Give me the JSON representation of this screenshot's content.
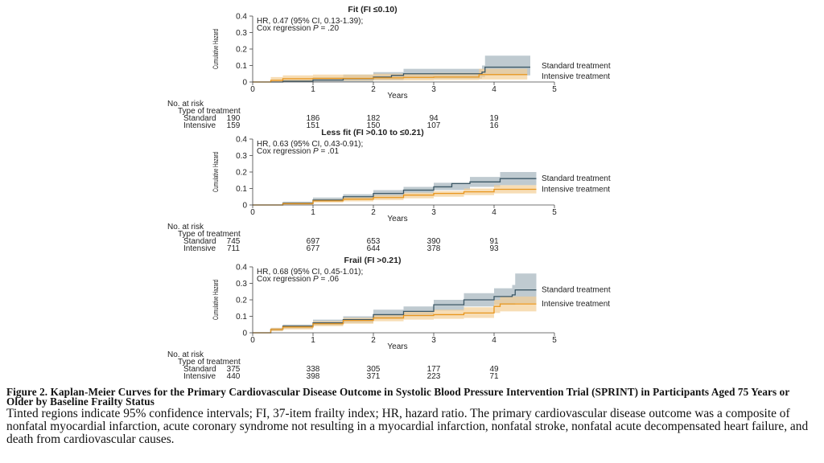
{
  "panels": [
    {
      "title": "Fit (FI ≤0.10)",
      "hr_line": "HR, 0.47 (95% CI, 0.13-1.39);",
      "cox_prefix": "Cox regression ",
      "cox_p": "P",
      "cox_suffix": " = .20",
      "risk_standard": [
        "190",
        "186",
        "182",
        "94",
        "19"
      ],
      "risk_intensive": [
        "159",
        "151",
        "150",
        "107",
        "16"
      ]
    },
    {
      "title": "Less fit (FI >0.10 to ≤0.21)",
      "hr_line": "HR, 0.63 (95% CI, 0.43-0.91);",
      "cox_prefix": "Cox regression ",
      "cox_p": "P",
      "cox_suffix": " = .01",
      "risk_standard": [
        "745",
        "697",
        "653",
        "390",
        "91"
      ],
      "risk_intensive": [
        "711",
        "677",
        "644",
        "378",
        "93"
      ]
    },
    {
      "title": "Frail (FI >0.21)",
      "hr_line": "HR, 0.68 (95% CI, 0.45-1.01);",
      "cox_prefix": "Cox regression ",
      "cox_p": "P",
      "cox_suffix": " = .06",
      "risk_standard": [
        "375",
        "338",
        "305",
        "177",
        "49"
      ],
      "risk_intensive": [
        "440",
        "398",
        "371",
        "223",
        "71"
      ]
    }
  ],
  "labels": {
    "ylabel": "Cumulative Hazard",
    "xlabel": "Years",
    "no_at_risk": "No. at risk",
    "type_of_treatment": "Type of treatment",
    "standard_row": "Standard",
    "intensive_row": "Intensive",
    "standard_series": "Standard treatment",
    "intensive_series": "Intensive treatment"
  },
  "colors": {
    "standard_line": "#3d5866",
    "standard_band": "#a9b8c0",
    "intensive_line": "#e8961e",
    "intensive_band": "#f4cf95"
  },
  "chart_data": [
    {
      "type": "line",
      "title": "Fit (FI ≤0.10)",
      "xlabel": "Years",
      "ylabel": "Cumulative Hazard",
      "xlim": [
        0,
        5
      ],
      "ylim": [
        0,
        0.4
      ],
      "x_ticks": [
        0,
        1,
        2,
        3,
        4,
        5
      ],
      "y_ticks": [
        0,
        0.1,
        0.2,
        0.3,
        0.4
      ],
      "y_tick_labels": [
        "0",
        "0.1",
        "0.2",
        "0.3",
        "0.4"
      ],
      "series": [
        {
          "name": "Standard treatment",
          "points": [
            [
              0,
              0
            ],
            [
              0.5,
              0.005
            ],
            [
              1,
              0.012
            ],
            [
              1.5,
              0.02
            ],
            [
              2,
              0.03
            ],
            [
              2.3,
              0.04
            ],
            [
              2.5,
              0.05
            ],
            [
              3.8,
              0.06
            ],
            [
              3.85,
              0.09
            ],
            [
              4.6,
              0.09
            ]
          ],
          "ci_upper": [
            [
              0,
              0
            ],
            [
              0.5,
              0.015
            ],
            [
              1,
              0.03
            ],
            [
              1.5,
              0.045
            ],
            [
              2,
              0.06
            ],
            [
              2.5,
              0.08
            ],
            [
              3.8,
              0.1
            ],
            [
              3.85,
              0.16
            ],
            [
              4.6,
              0.16
            ]
          ],
          "ci_lower": [
            [
              0,
              0
            ],
            [
              1,
              0.002
            ],
            [
              2,
              0.01
            ],
            [
              2.5,
              0.02
            ],
            [
              3.8,
              0.03
            ],
            [
              3.85,
              0.04
            ],
            [
              4.6,
              0.04
            ]
          ]
        },
        {
          "name": "Intensive treatment",
          "points": [
            [
              0,
              0
            ],
            [
              0.3,
              0.01
            ],
            [
              0.5,
              0.02
            ],
            [
              1,
              0.022
            ],
            [
              2,
              0.025
            ],
            [
              2.5,
              0.028
            ],
            [
              3,
              0.03
            ],
            [
              3.7,
              0.03
            ],
            [
              3.75,
              0.045
            ],
            [
              4.55,
              0.045
            ]
          ],
          "ci_upper": [
            [
              0,
              0
            ],
            [
              0.3,
              0.03
            ],
            [
              0.5,
              0.04
            ],
            [
              1,
              0.045
            ],
            [
              2,
              0.05
            ],
            [
              3,
              0.055
            ],
            [
              3.75,
              0.08
            ],
            [
              4.55,
              0.08
            ]
          ],
          "ci_lower": [
            [
              0,
              0
            ],
            [
              0.5,
              0.005
            ],
            [
              1,
              0.008
            ],
            [
              2,
              0.01
            ],
            [
              3,
              0.012
            ],
            [
              3.75,
              0.015
            ],
            [
              4.55,
              0.015
            ]
          ]
        }
      ]
    },
    {
      "type": "line",
      "title": "Less fit (FI >0.10 to ≤0.21)",
      "xlabel": "Years",
      "ylabel": "Cumulative Hazard",
      "xlim": [
        0,
        5
      ],
      "ylim": [
        0,
        0.4
      ],
      "x_ticks": [
        0,
        1,
        2,
        3,
        4,
        5
      ],
      "y_ticks": [
        0,
        0.1,
        0.2,
        0.3,
        0.4
      ],
      "y_tick_labels": [
        "0",
        "0.1",
        "0.2",
        "0.3",
        "0.4"
      ],
      "series": [
        {
          "name": "Standard treatment",
          "points": [
            [
              0,
              0
            ],
            [
              0.5,
              0.01
            ],
            [
              1,
              0.03
            ],
            [
              1.5,
              0.05
            ],
            [
              2,
              0.07
            ],
            [
              2.5,
              0.09
            ],
            [
              3,
              0.11
            ],
            [
              3.3,
              0.13
            ],
            [
              3.6,
              0.14
            ],
            [
              4.1,
              0.16
            ],
            [
              4.7,
              0.16
            ]
          ],
          "ci_upper": [
            [
              0,
              0
            ],
            [
              0.5,
              0.02
            ],
            [
              1,
              0.045
            ],
            [
              1.5,
              0.065
            ],
            [
              2,
              0.09
            ],
            [
              2.5,
              0.11
            ],
            [
              3,
              0.135
            ],
            [
              3.6,
              0.17
            ],
            [
              4.1,
              0.2
            ],
            [
              4.7,
              0.2
            ]
          ],
          "ci_lower": [
            [
              0,
              0
            ],
            [
              0.5,
              0.003
            ],
            [
              1,
              0.02
            ],
            [
              1.5,
              0.035
            ],
            [
              2,
              0.05
            ],
            [
              2.5,
              0.07
            ],
            [
              3,
              0.09
            ],
            [
              3.6,
              0.11
            ],
            [
              4.1,
              0.12
            ],
            [
              4.7,
              0.12
            ]
          ]
        },
        {
          "name": "Intensive treatment",
          "points": [
            [
              0,
              0
            ],
            [
              0.5,
              0.008
            ],
            [
              1,
              0.025
            ],
            [
              1.5,
              0.035
            ],
            [
              2,
              0.045
            ],
            [
              2.5,
              0.06
            ],
            [
              3,
              0.07
            ],
            [
              3.5,
              0.08
            ],
            [
              4,
              0.095
            ],
            [
              4.7,
              0.095
            ]
          ],
          "ci_upper": [
            [
              0,
              0
            ],
            [
              0.5,
              0.015
            ],
            [
              1,
              0.035
            ],
            [
              1.5,
              0.05
            ],
            [
              2,
              0.06
            ],
            [
              2.5,
              0.075
            ],
            [
              3,
              0.085
            ],
            [
              3.5,
              0.1
            ],
            [
              4,
              0.12
            ],
            [
              4.7,
              0.12
            ]
          ],
          "ci_lower": [
            [
              0,
              0
            ],
            [
              0.5,
              0.002
            ],
            [
              1,
              0.015
            ],
            [
              1.5,
              0.022
            ],
            [
              2,
              0.03
            ],
            [
              2.5,
              0.04
            ],
            [
              3,
              0.05
            ],
            [
              3.5,
              0.06
            ],
            [
              4,
              0.07
            ],
            [
              4.7,
              0.07
            ]
          ]
        }
      ]
    },
    {
      "type": "line",
      "title": "Frail (FI >0.21)",
      "xlabel": "Years",
      "ylabel": "Cumulative Hazard",
      "xlim": [
        0,
        5
      ],
      "ylim": [
        0,
        0.4
      ],
      "x_ticks": [
        0,
        1,
        2,
        3,
        4,
        5
      ],
      "y_ticks": [
        0,
        0.1,
        0.2,
        0.3,
        0.4
      ],
      "y_tick_labels": [
        "0",
        "0.1",
        "0.2",
        "0.3",
        "0.4"
      ],
      "series": [
        {
          "name": "Standard treatment",
          "points": [
            [
              0,
              0
            ],
            [
              0.3,
              0.02
            ],
            [
              0.5,
              0.04
            ],
            [
              1,
              0.06
            ],
            [
              1.5,
              0.08
            ],
            [
              2,
              0.11
            ],
            [
              2.5,
              0.13
            ],
            [
              3,
              0.17
            ],
            [
              3.5,
              0.2
            ],
            [
              4,
              0.22
            ],
            [
              4.3,
              0.23
            ],
            [
              4.35,
              0.26
            ],
            [
              4.7,
              0.26
            ]
          ],
          "ci_upper": [
            [
              0,
              0
            ],
            [
              0.3,
              0.03
            ],
            [
              0.5,
              0.05
            ],
            [
              1,
              0.08
            ],
            [
              1.5,
              0.1
            ],
            [
              2,
              0.14
            ],
            [
              2.5,
              0.16
            ],
            [
              3,
              0.2
            ],
            [
              3.5,
              0.24
            ],
            [
              4,
              0.27
            ],
            [
              4.3,
              0.29
            ],
            [
              4.35,
              0.36
            ],
            [
              4.7,
              0.36
            ]
          ],
          "ci_lower": [
            [
              0,
              0
            ],
            [
              0.3,
              0.01
            ],
            [
              0.5,
              0.025
            ],
            [
              1,
              0.045
            ],
            [
              1.5,
              0.06
            ],
            [
              2,
              0.085
            ],
            [
              2.5,
              0.1
            ],
            [
              3,
              0.135
            ],
            [
              3.5,
              0.16
            ],
            [
              4,
              0.17
            ],
            [
              4.35,
              0.18
            ],
            [
              4.7,
              0.18
            ]
          ]
        },
        {
          "name": "Intensive treatment",
          "points": [
            [
              0,
              0
            ],
            [
              0.3,
              0.02
            ],
            [
              0.5,
              0.035
            ],
            [
              1,
              0.055
            ],
            [
              1.5,
              0.075
            ],
            [
              2,
              0.09
            ],
            [
              2.5,
              0.105
            ],
            [
              3,
              0.11
            ],
            [
              3.5,
              0.12
            ],
            [
              4,
              0.16
            ],
            [
              4.1,
              0.175
            ],
            [
              4.7,
              0.175
            ]
          ],
          "ci_upper": [
            [
              0,
              0
            ],
            [
              0.3,
              0.03
            ],
            [
              0.5,
              0.045
            ],
            [
              1,
              0.07
            ],
            [
              1.5,
              0.09
            ],
            [
              2,
              0.11
            ],
            [
              2.5,
              0.13
            ],
            [
              3,
              0.14
            ],
            [
              3.5,
              0.155
            ],
            [
              4,
              0.2
            ],
            [
              4.1,
              0.22
            ],
            [
              4.7,
              0.22
            ]
          ],
          "ci_lower": [
            [
              0,
              0
            ],
            [
              0.3,
              0.01
            ],
            [
              0.5,
              0.02
            ],
            [
              1,
              0.04
            ],
            [
              1.5,
              0.055
            ],
            [
              2,
              0.07
            ],
            [
              2.5,
              0.08
            ],
            [
              3,
              0.085
            ],
            [
              3.5,
              0.09
            ],
            [
              4,
              0.12
            ],
            [
              4.1,
              0.13
            ],
            [
              4.7,
              0.13
            ]
          ]
        }
      ]
    }
  ],
  "caption": {
    "title": "Figure 2. Kaplan-Meier Curves for the Primary Cardiovascular Disease Outcome in Systolic Blood Pressure Intervention Trial (SPRINT) in Participants Aged 75 Years or Older by Baseline Frailty Status",
    "body": "Tinted regions indicate 95% confidence intervals; FI, 37-item frailty index; HR, hazard ratio. The primary cardiovascular disease outcome was a composite of nonfatal myocardial infarction, acute coronary syndrome not resulting in a myocardial infarction, nonfatal stroke, nonfatal acute decompensated heart failure, and death from cardiovascular causes."
  }
}
